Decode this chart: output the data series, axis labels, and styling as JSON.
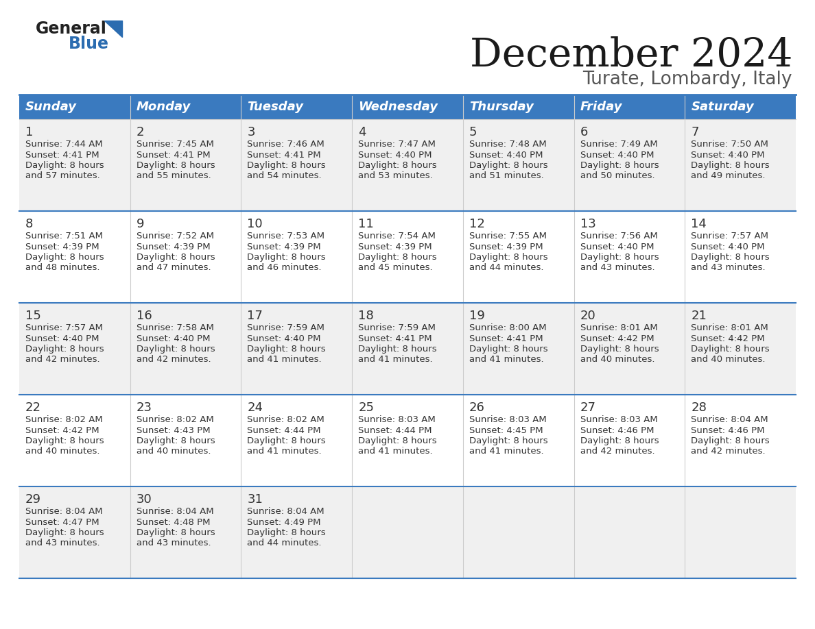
{
  "title": "December 2024",
  "subtitle": "Turate, Lombardy, Italy",
  "header_color": "#3a7abf",
  "header_text_color": "#ffffff",
  "days_of_week": [
    "Sunday",
    "Monday",
    "Tuesday",
    "Wednesday",
    "Thursday",
    "Friday",
    "Saturday"
  ],
  "bg_color": "#ffffff",
  "divider_color": "#3a7abf",
  "text_color": "#333333",
  "row_bg_colors": [
    "#f0f0f0",
    "#ffffff",
    "#f0f0f0",
    "#ffffff",
    "#f0f0f0"
  ],
  "calendar": [
    [
      {
        "day": "1",
        "sunrise": "7:44 AM",
        "sunset": "4:41 PM",
        "daylight": "8 hours",
        "daylight2": "and 57 minutes."
      },
      {
        "day": "2",
        "sunrise": "7:45 AM",
        "sunset": "4:41 PM",
        "daylight": "8 hours",
        "daylight2": "and 55 minutes."
      },
      {
        "day": "3",
        "sunrise": "7:46 AM",
        "sunset": "4:41 PM",
        "daylight": "8 hours",
        "daylight2": "and 54 minutes."
      },
      {
        "day": "4",
        "sunrise": "7:47 AM",
        "sunset": "4:40 PM",
        "daylight": "8 hours",
        "daylight2": "and 53 minutes."
      },
      {
        "day": "5",
        "sunrise": "7:48 AM",
        "sunset": "4:40 PM",
        "daylight": "8 hours",
        "daylight2": "and 51 minutes."
      },
      {
        "day": "6",
        "sunrise": "7:49 AM",
        "sunset": "4:40 PM",
        "daylight": "8 hours",
        "daylight2": "and 50 minutes."
      },
      {
        "day": "7",
        "sunrise": "7:50 AM",
        "sunset": "4:40 PM",
        "daylight": "8 hours",
        "daylight2": "and 49 minutes."
      }
    ],
    [
      {
        "day": "8",
        "sunrise": "7:51 AM",
        "sunset": "4:39 PM",
        "daylight": "8 hours",
        "daylight2": "and 48 minutes."
      },
      {
        "day": "9",
        "sunrise": "7:52 AM",
        "sunset": "4:39 PM",
        "daylight": "8 hours",
        "daylight2": "and 47 minutes."
      },
      {
        "day": "10",
        "sunrise": "7:53 AM",
        "sunset": "4:39 PM",
        "daylight": "8 hours",
        "daylight2": "and 46 minutes."
      },
      {
        "day": "11",
        "sunrise": "7:54 AM",
        "sunset": "4:39 PM",
        "daylight": "8 hours",
        "daylight2": "and 45 minutes."
      },
      {
        "day": "12",
        "sunrise": "7:55 AM",
        "sunset": "4:39 PM",
        "daylight": "8 hours",
        "daylight2": "and 44 minutes."
      },
      {
        "day": "13",
        "sunrise": "7:56 AM",
        "sunset": "4:40 PM",
        "daylight": "8 hours",
        "daylight2": "and 43 minutes."
      },
      {
        "day": "14",
        "sunrise": "7:57 AM",
        "sunset": "4:40 PM",
        "daylight": "8 hours",
        "daylight2": "and 43 minutes."
      }
    ],
    [
      {
        "day": "15",
        "sunrise": "7:57 AM",
        "sunset": "4:40 PM",
        "daylight": "8 hours",
        "daylight2": "and 42 minutes."
      },
      {
        "day": "16",
        "sunrise": "7:58 AM",
        "sunset": "4:40 PM",
        "daylight": "8 hours",
        "daylight2": "and 42 minutes."
      },
      {
        "day": "17",
        "sunrise": "7:59 AM",
        "sunset": "4:40 PM",
        "daylight": "8 hours",
        "daylight2": "and 41 minutes."
      },
      {
        "day": "18",
        "sunrise": "7:59 AM",
        "sunset": "4:41 PM",
        "daylight": "8 hours",
        "daylight2": "and 41 minutes."
      },
      {
        "day": "19",
        "sunrise": "8:00 AM",
        "sunset": "4:41 PM",
        "daylight": "8 hours",
        "daylight2": "and 41 minutes."
      },
      {
        "day": "20",
        "sunrise": "8:01 AM",
        "sunset": "4:42 PM",
        "daylight": "8 hours",
        "daylight2": "and 40 minutes."
      },
      {
        "day": "21",
        "sunrise": "8:01 AM",
        "sunset": "4:42 PM",
        "daylight": "8 hours",
        "daylight2": "and 40 minutes."
      }
    ],
    [
      {
        "day": "22",
        "sunrise": "8:02 AM",
        "sunset": "4:42 PM",
        "daylight": "8 hours",
        "daylight2": "and 40 minutes."
      },
      {
        "day": "23",
        "sunrise": "8:02 AM",
        "sunset": "4:43 PM",
        "daylight": "8 hours",
        "daylight2": "and 40 minutes."
      },
      {
        "day": "24",
        "sunrise": "8:02 AM",
        "sunset": "4:44 PM",
        "daylight": "8 hours",
        "daylight2": "and 41 minutes."
      },
      {
        "day": "25",
        "sunrise": "8:03 AM",
        "sunset": "4:44 PM",
        "daylight": "8 hours",
        "daylight2": "and 41 minutes."
      },
      {
        "day": "26",
        "sunrise": "8:03 AM",
        "sunset": "4:45 PM",
        "daylight": "8 hours",
        "daylight2": "and 41 minutes."
      },
      {
        "day": "27",
        "sunrise": "8:03 AM",
        "sunset": "4:46 PM",
        "daylight": "8 hours",
        "daylight2": "and 42 minutes."
      },
      {
        "day": "28",
        "sunrise": "8:04 AM",
        "sunset": "4:46 PM",
        "daylight": "8 hours",
        "daylight2": "and 42 minutes."
      }
    ],
    [
      {
        "day": "29",
        "sunrise": "8:04 AM",
        "sunset": "4:47 PM",
        "daylight": "8 hours",
        "daylight2": "and 43 minutes."
      },
      {
        "day": "30",
        "sunrise": "8:04 AM",
        "sunset": "4:48 PM",
        "daylight": "8 hours",
        "daylight2": "and 43 minutes."
      },
      {
        "day": "31",
        "sunrise": "8:04 AM",
        "sunset": "4:49 PM",
        "daylight": "8 hours",
        "daylight2": "and 44 minutes."
      },
      null,
      null,
      null,
      null
    ]
  ]
}
